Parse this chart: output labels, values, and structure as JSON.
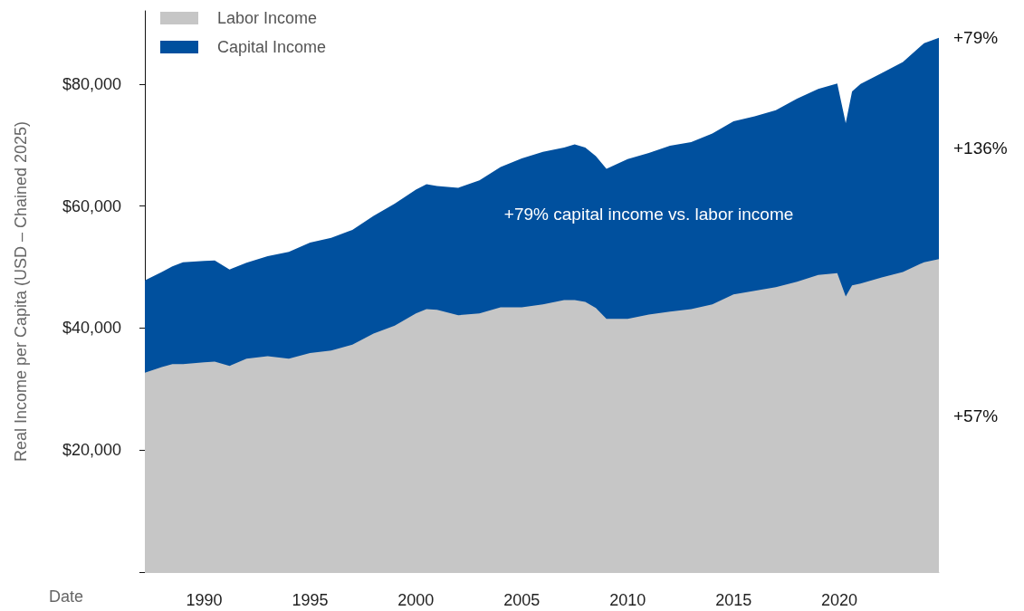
{
  "chart_data": {
    "type": "area",
    "stacked": true,
    "xlabel": "Date",
    "ylabel": "Real Income per Capita (USD – Chained 2025)",
    "x": [
      1987.2,
      1988,
      1988.5,
      1989,
      1990,
      1990.5,
      1991.2,
      1992,
      1993,
      1994,
      1995,
      1996,
      1997,
      1998,
      1999,
      2000,
      2000.5,
      2001,
      2002,
      2003,
      2004,
      2005,
      2006,
      2007,
      2007.5,
      2008,
      2008.5,
      2009,
      2010,
      2011,
      2012,
      2013,
      2014,
      2015,
      2016,
      2017,
      2018,
      2019,
      2019.9,
      2020.3,
      2020.6,
      2021,
      2022,
      2023,
      2024,
      2024.7
    ],
    "series": [
      {
        "name": "Labor Income",
        "color": "#c6c6c6",
        "values": [
          32700,
          33600,
          34100,
          34100,
          34400,
          34500,
          33800,
          35000,
          35400,
          35000,
          35900,
          36300,
          37300,
          39100,
          40400,
          42400,
          43100,
          43000,
          42100,
          42400,
          43400,
          43400,
          43900,
          44600,
          44600,
          44300,
          43300,
          41500,
          41500,
          42200,
          42700,
          43100,
          43900,
          45500,
          46100,
          46700,
          47600,
          48700,
          49000,
          45200,
          47000,
          47300,
          48300,
          49200,
          50800,
          51300
        ]
      },
      {
        "name": "Capital Income",
        "color": "#00509e",
        "values": [
          15100,
          15600,
          16000,
          16700,
          16600,
          16600,
          15800,
          15700,
          16400,
          17500,
          18100,
          18500,
          18800,
          19300,
          20000,
          20300,
          20500,
          20300,
          20900,
          21800,
          23000,
          24400,
          25000,
          25000,
          25500,
          25300,
          24900,
          24600,
          26200,
          26500,
          27200,
          27400,
          28000,
          28400,
          28600,
          29000,
          30000,
          30500,
          31100,
          28400,
          31800,
          32700,
          33500,
          34400,
          35900,
          36300
        ]
      }
    ],
    "xlim": [
      1987.2,
      2024.7
    ],
    "xticks": [
      1990,
      1995,
      2000,
      2005,
      2010,
      2015,
      2020
    ],
    "ylim": [
      0,
      92000
    ],
    "yticks": [
      {
        "value": 0,
        "label": null
      },
      {
        "value": 20000,
        "label": "$20,000"
      },
      {
        "value": 40000,
        "label": "$40,000"
      },
      {
        "value": 60000,
        "label": "$60,000"
      },
      {
        "value": 80000,
        "label": "$80,000"
      }
    ],
    "legend": "top left",
    "grid": false,
    "annotations": [
      "+79%",
      "+136%",
      "+57%",
      "+79% capital income vs. labor income"
    ]
  }
}
